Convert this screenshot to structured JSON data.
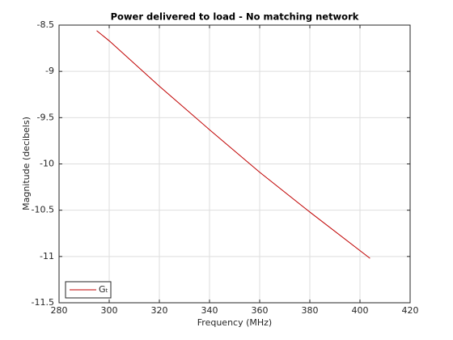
{
  "chart_data": {
    "type": "line",
    "title": "Power delivered to load - No matching network",
    "x_label": "Frequency (MHz)",
    "y_label": "Magnitude (decibels)",
    "x": [
      295,
      300,
      320,
      340,
      360,
      380,
      404
    ],
    "series": [
      {
        "name": "Gₜ",
        "color": "#c00000",
        "values": [
          -8.56,
          -8.67,
          -9.16,
          -9.63,
          -10.09,
          -10.52,
          -11.02
        ]
      }
    ],
    "xlim": [
      280,
      420
    ],
    "xticks": [
      280,
      300,
      320,
      340,
      360,
      380,
      400,
      420
    ],
    "ylim": [
      -11.5,
      -8.5
    ],
    "yticks": [
      -11.5,
      -11,
      -10.5,
      -10,
      -9.5,
      -9,
      -8.5
    ],
    "grid": true,
    "legend": "lower-left"
  }
}
